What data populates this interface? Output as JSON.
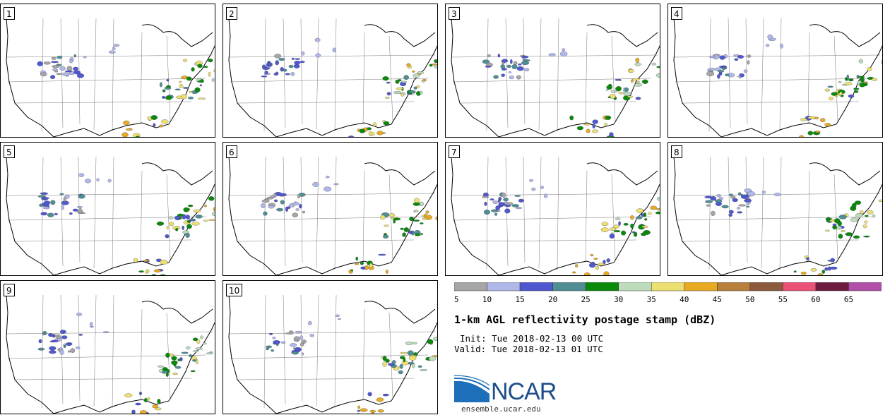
{
  "panels": [
    {
      "label": "1"
    },
    {
      "label": "2"
    },
    {
      "label": "3"
    },
    {
      "label": "4"
    },
    {
      "label": "5"
    },
    {
      "label": "6"
    },
    {
      "label": "7"
    },
    {
      "label": "8"
    },
    {
      "label": "9"
    },
    {
      "label": "10"
    }
  ],
  "legend": {
    "ticks": [
      "5",
      "10",
      "15",
      "20",
      "25",
      "30",
      "35",
      "40",
      "45",
      "50",
      "55",
      "60",
      "65"
    ],
    "colors": [
      "#a6a6a6",
      "#b0b8e8",
      "#5058d0",
      "#4f8f93",
      "#0a8a0a",
      "#bcdcbc",
      "#ece070",
      "#e8aa20",
      "#b8803a",
      "#8c5a3c",
      "#ec5278",
      "#6e1c3e",
      "#b050a8"
    ]
  },
  "title": "1-km AGL reflectivity postage stamp (dBZ)",
  "init": "Init: Tue 2018-02-13 00 UTC",
  "valid": "Valid: Tue 2018-02-13 01 UTC",
  "logo": {
    "name": "NCAR",
    "url": "ensemble.ucar.edu",
    "colors": {
      "blue": "#1c6fb8",
      "dark": "#1c4e8a"
    }
  }
}
